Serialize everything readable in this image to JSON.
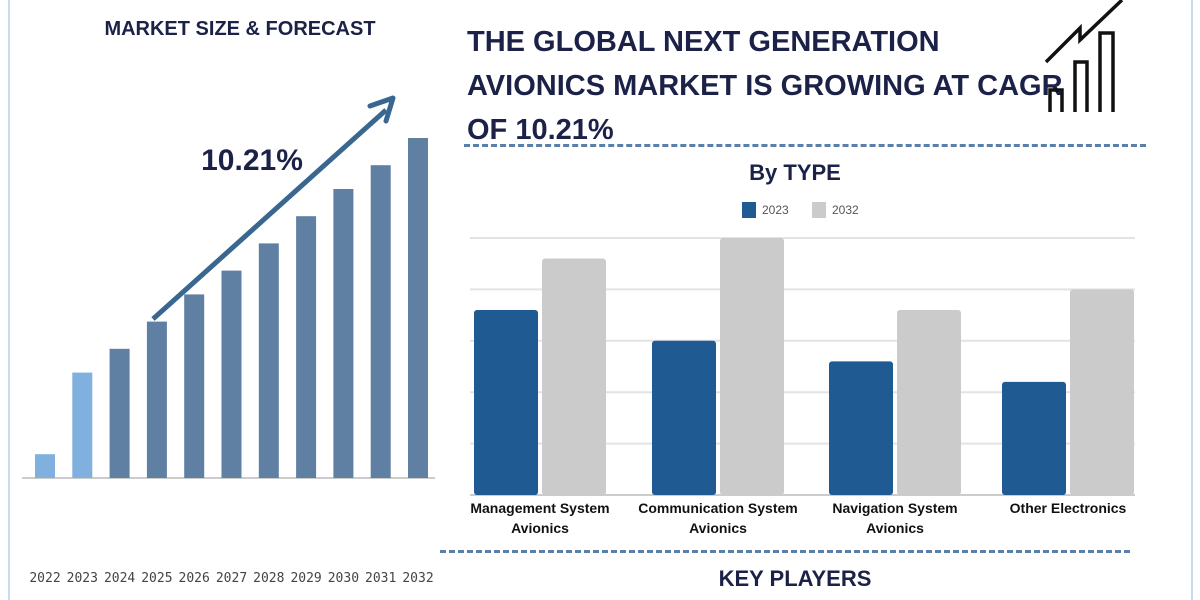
{
  "left_title": "MARKET SIZE & FORECAST",
  "main_title": "THE GLOBAL NEXT GENERATION AVIONICS MARKET IS GROWING AT CAGR OF 10.21%",
  "icon": "growth-chart-icon",
  "key_players_label": "KEY PLAYERS",
  "colors": {
    "historic": "#7fb0de",
    "forecast": "#5f7fa3",
    "arrow": "#3a6790",
    "series_2023": "#1f5a92",
    "series_2032": "#cbcbcb",
    "title": "#1b2147"
  },
  "chart_data": [
    {
      "type": "bar",
      "title": "MARKET SIZE & FORECAST",
      "categories": [
        "2022",
        "2023",
        "2024",
        "2025",
        "2026",
        "2027",
        "2028",
        "2029",
        "2030",
        "2031",
        "2032"
      ],
      "values": [
        7,
        31,
        38,
        46,
        54,
        61,
        69,
        77,
        85,
        92,
        100
      ],
      "annotation": "10.21%",
      "grid": false
    },
    {
      "type": "bar",
      "title": "By TYPE",
      "categories": [
        "Management System Avionics",
        "Communication System Avionics",
        "Navigation System Avionics",
        "Other Electronics"
      ],
      "series": [
        {
          "name": "2023",
          "values": [
            3.6,
            3.0,
            2.6,
            2.2
          ]
        },
        {
          "name": "2032",
          "values": [
            4.6,
            5.0,
            3.6,
            4.0
          ]
        }
      ],
      "ylim": [
        0,
        5
      ],
      "grid": true,
      "legend": "top-center"
    }
  ]
}
